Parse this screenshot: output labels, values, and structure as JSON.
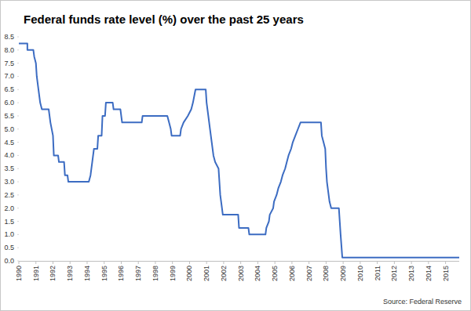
{
  "chart_data": {
    "type": "line",
    "title": "Federal funds rate level (%) over the past 25 years",
    "source": "Source: Federal Reserve",
    "color": "#3c6cc2",
    "x": [
      1990.0,
      1990.5,
      1990.5,
      1990.85,
      1990.9,
      1991.0,
      1991.05,
      1991.15,
      1991.25,
      1991.35,
      1991.75,
      1991.85,
      1992.0,
      1992.05,
      1992.3,
      1992.35,
      1992.65,
      1992.7,
      1992.85,
      1992.9,
      1994.1,
      1994.2,
      1994.3,
      1994.4,
      1994.6,
      1994.65,
      1994.85,
      1994.9,
      1995.05,
      1995.1,
      1995.5,
      1995.55,
      1995.95,
      1996.05,
      1997.2,
      1997.25,
      1998.7,
      1998.8,
      1998.9,
      1998.95,
      1999.45,
      1999.5,
      1999.65,
      1999.9,
      2000.1,
      2000.2,
      2000.35,
      2000.95,
      2001.0,
      2001.1,
      2001.2,
      2001.3,
      2001.4,
      2001.5,
      2001.7,
      2001.75,
      2001.8,
      2001.9,
      2001.95,
      2002.85,
      2002.9,
      2003.45,
      2003.5,
      2004.45,
      2004.5,
      2004.65,
      2004.7,
      2004.9,
      2004.95,
      2005.1,
      2005.2,
      2005.35,
      2005.45,
      2005.6,
      2005.7,
      2005.8,
      2005.95,
      2006.05,
      2006.2,
      2006.35,
      2006.5,
      2007.7,
      2007.75,
      2007.85,
      2007.95,
      2008.0,
      2008.05,
      2008.2,
      2008.3,
      2008.75,
      2008.8,
      2008.85,
      2008.95,
      2015.8
    ],
    "values": [
      8.25,
      8.25,
      8.0,
      8.0,
      7.75,
      7.5,
      7.0,
      6.5,
      6.0,
      5.75,
      5.75,
      5.25,
      4.75,
      4.0,
      4.0,
      3.75,
      3.75,
      3.25,
      3.25,
      3.0,
      3.0,
      3.25,
      3.75,
      4.25,
      4.25,
      4.75,
      4.75,
      5.5,
      5.5,
      6.0,
      6.0,
      5.75,
      5.75,
      5.25,
      5.25,
      5.5,
      5.5,
      5.25,
      5.0,
      4.75,
      4.75,
      5.0,
      5.25,
      5.5,
      5.75,
      6.0,
      6.5,
      6.5,
      6.0,
      5.5,
      5.0,
      4.5,
      4.0,
      3.75,
      3.5,
      3.0,
      2.5,
      2.0,
      1.75,
      1.75,
      1.25,
      1.25,
      1.0,
      1.0,
      1.25,
      1.5,
      1.75,
      2.0,
      2.25,
      2.5,
      2.75,
      3.0,
      3.25,
      3.5,
      3.75,
      4.0,
      4.25,
      4.5,
      4.75,
      5.0,
      5.25,
      5.25,
      4.75,
      4.5,
      4.25,
      3.5,
      3.0,
      2.25,
      2.0,
      2.0,
      1.5,
      1.0,
      0.125,
      0.125
    ],
    "xlim": [
      1990,
      2015.8
    ],
    "xticks": [
      1990,
      1991,
      1992,
      1993,
      1994,
      1995,
      1996,
      1997,
      1998,
      1999,
      2000,
      2001,
      2002,
      2003,
      2004,
      2005,
      2006,
      2007,
      2008,
      2009,
      2010,
      2011,
      2012,
      2013,
      2014,
      2015
    ],
    "ylim": [
      0,
      8.5
    ],
    "yticks": [
      {
        "value": 0,
        "label": "0.0"
      },
      {
        "value": 0.5,
        "label": "0.5"
      },
      {
        "value": 1,
        "label": "1.0"
      },
      {
        "value": 1.5,
        "label": "1.5"
      },
      {
        "value": 2,
        "label": "2.0"
      },
      {
        "value": 2.5,
        "label": "2.5"
      },
      {
        "value": 3,
        "label": "3.0"
      },
      {
        "value": 3.5,
        "label": "3.5"
      },
      {
        "value": 4,
        "label": "4.0"
      },
      {
        "value": 4.5,
        "label": "4.5"
      },
      {
        "value": 5,
        "label": "5.0"
      },
      {
        "value": 5.5,
        "label": "5.5"
      },
      {
        "value": 6,
        "label": "6.0"
      },
      {
        "value": 6.5,
        "label": "6.5"
      },
      {
        "value": 7,
        "label": "7.0"
      },
      {
        "value": 7.5,
        "label": "7.5"
      },
      {
        "value": 8,
        "label": "8.0"
      },
      {
        "value": 8.5,
        "label": "8.5"
      }
    ],
    "grid": false
  }
}
